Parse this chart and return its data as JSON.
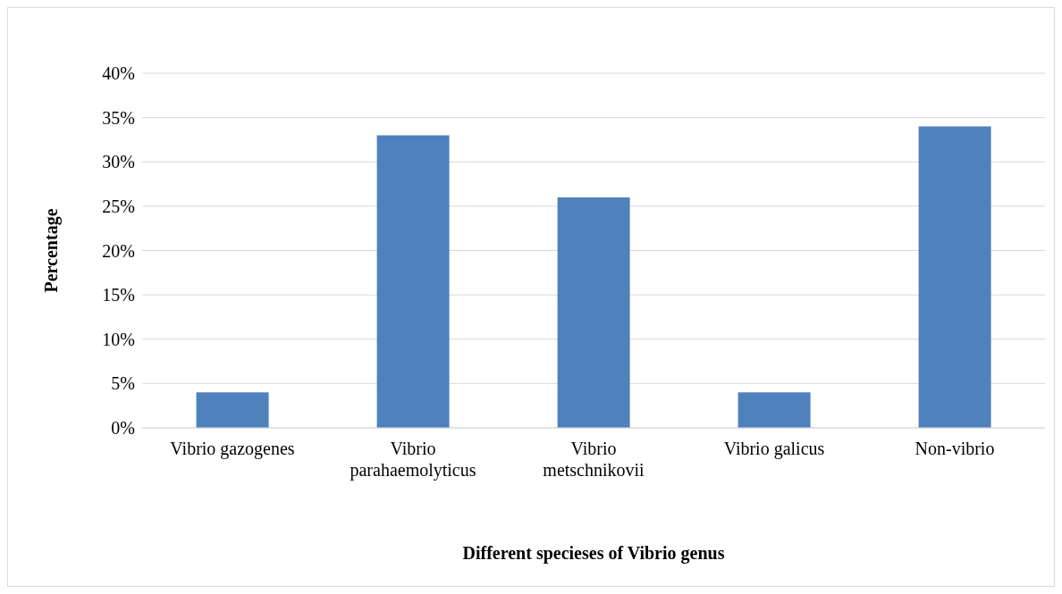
{
  "chart_data": {
    "type": "bar",
    "xlabel": "Different specieses of Vibrio genus",
    "ylabel": "Percentage",
    "categories": [
      "Vibrio gazogenes",
      "Vibrio parahaemolyticus",
      "Vibrio metschnikovii",
      "Vibrio galicus",
      "Non-vibrio"
    ],
    "values": [
      4,
      33,
      26,
      4,
      34
    ],
    "color": "#4f81bd",
    "ylim": [
      0,
      40
    ],
    "yticks": [
      {
        "value": 0,
        "label": "0%"
      },
      {
        "value": 5,
        "label": "5%"
      },
      {
        "value": 10,
        "label": "10%"
      },
      {
        "value": 15,
        "label": "15%"
      },
      {
        "value": 20,
        "label": "20%"
      },
      {
        "value": 25,
        "label": "25%"
      },
      {
        "value": 30,
        "label": "30%"
      },
      {
        "value": 35,
        "label": "35%"
      },
      {
        "value": 40,
        "label": "40%"
      }
    ],
    "grid": "y",
    "legend": false
  }
}
